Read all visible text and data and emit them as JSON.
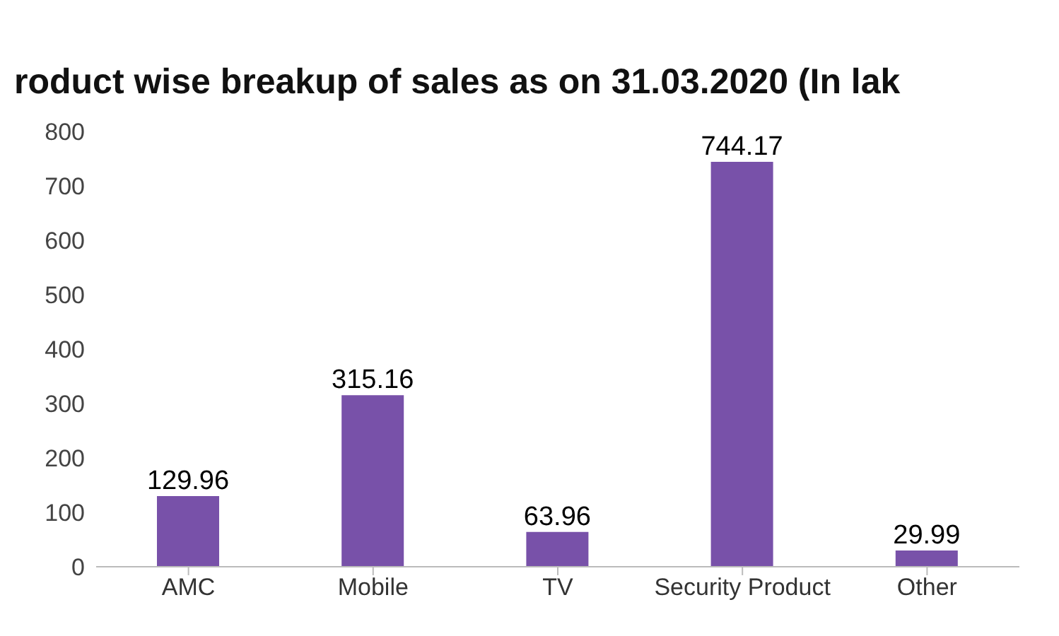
{
  "chart_data": {
    "type": "bar",
    "title": "roduct wise breakup of sales as on 31.03.2020 (In lak",
    "categories": [
      "AMC",
      "Mobile",
      "TV",
      "Security Product",
      "Other"
    ],
    "values": [
      129.96,
      315.16,
      63.96,
      744.17,
      29.99
    ],
    "color": "#7851a9",
    "ylim": [
      0,
      800
    ],
    "yticks": [
      0,
      100,
      200,
      300,
      400,
      500,
      600,
      700,
      800
    ],
    "data_labels": true
  }
}
